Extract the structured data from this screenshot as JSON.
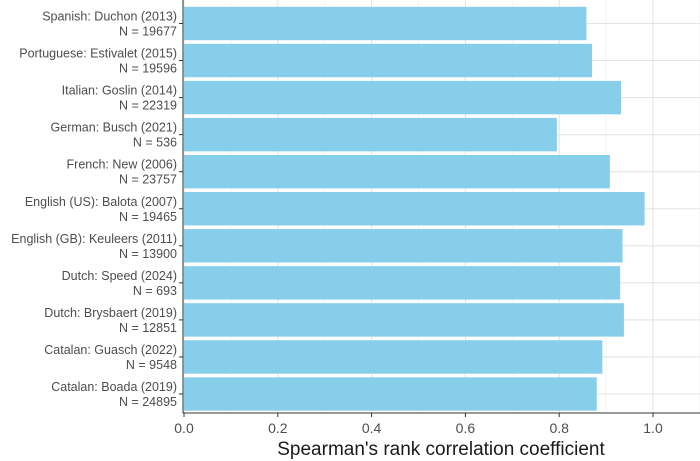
{
  "chart_data": {
    "type": "bar",
    "orientation": "horizontal",
    "title": "",
    "xlabel": "Spearman's rank correlation coefficient",
    "ylabel": "",
    "xlim": [
      0,
      1.0
    ],
    "x_ticks": [
      "0.0",
      "0.2",
      "0.4",
      "0.6",
      "0.8",
      "1.0"
    ],
    "grid": true,
    "legend": "none",
    "bar_color": "#87CEEB",
    "categories": [
      {
        "name": "Spanish: Duchon (2013)",
        "n": "N = 19677"
      },
      {
        "name": "Portuguese: Estivalet (2015)",
        "n": "N = 19596"
      },
      {
        "name": "Italian: Goslin (2014)",
        "n": "N = 22319"
      },
      {
        "name": "German: Busch (2021)",
        "n": "N = 536"
      },
      {
        "name": "French: New (2006)",
        "n": "N = 23757"
      },
      {
        "name": "English (US): Balota (2007)",
        "n": "N = 19465"
      },
      {
        "name": "English (GB): Keuleers (2011)",
        "n": "N = 13900"
      },
      {
        "name": "Dutch: Speed (2024)",
        "n": "N = 693"
      },
      {
        "name": "Dutch: Brysbaert (2019)",
        "n": "N = 12851"
      },
      {
        "name": "Catalan: Guasch (2022)",
        "n": "N = 9548"
      },
      {
        "name": "Catalan: Boada (2019)",
        "n": "N = 24895"
      }
    ],
    "values": [
      0.858,
      0.87,
      0.932,
      0.795,
      0.908,
      0.982,
      0.935,
      0.93,
      0.938,
      0.892,
      0.88
    ]
  }
}
